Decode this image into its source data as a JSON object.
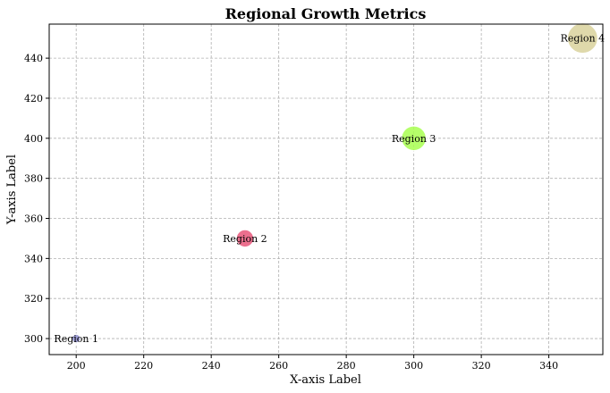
{
  "chart_data": {
    "type": "scatter",
    "title": "Regional Growth Metrics",
    "xlabel": "X-axis Label",
    "ylabel": "Y-axis Label",
    "xlim": [
      192,
      356
    ],
    "ylim": [
      292,
      457
    ],
    "xticks": [
      200,
      220,
      240,
      260,
      280,
      300,
      320,
      340
    ],
    "yticks": [
      300,
      320,
      340,
      360,
      380,
      400,
      420,
      440
    ],
    "grid": true,
    "points": [
      {
        "label": "Region 1",
        "x": 200,
        "y": 300,
        "size": 50,
        "color": "#8f8fd0"
      },
      {
        "label": "Region 2",
        "x": 250,
        "y": 350,
        "size": 200,
        "color": "#e8567a"
      },
      {
        "label": "Region 3",
        "x": 300,
        "y": 400,
        "size": 400,
        "color": "#a8ff50"
      },
      {
        "label": "Region 4",
        "x": 350,
        "y": 450,
        "size": 600,
        "color": "#d9d29c"
      }
    ]
  }
}
